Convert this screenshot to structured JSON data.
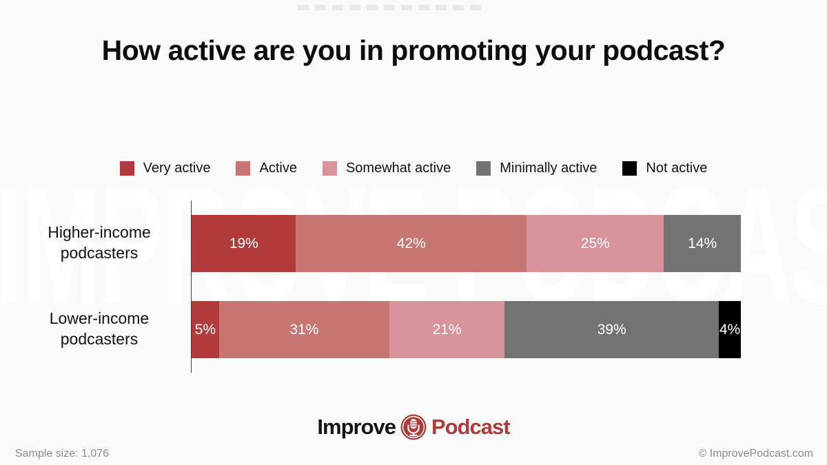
{
  "page": {
    "background_color": "#fafafa",
    "watermark_color": "#ffffff",
    "accent_red": "#b23c3c",
    "footer_text_color": "#8b8b8b",
    "top_dash_color": "#e9e9e9"
  },
  "title": "How active are you in promoting your podcast?",
  "watermark": "IMPROVE PODCAST",
  "legend": [
    {
      "label": "Very active",
      "color": "#b23c3c"
    },
    {
      "label": "Active",
      "color": "#c77672"
    },
    {
      "label": "Somewhat active",
      "color": "#d9939b"
    },
    {
      "label": "Minimally active",
      "color": "#737373"
    },
    {
      "label": "Not active",
      "color": "#000000"
    }
  ],
  "chart_data": {
    "type": "bar",
    "orientation": "horizontal-stacked",
    "title": "How active are you in promoting your podcast?",
    "categories": [
      "Higher-income podcasters",
      "Lower-income podcasters"
    ],
    "series": [
      {
        "name": "Very active",
        "color": "#b23c3c",
        "values": [
          19,
          5
        ]
      },
      {
        "name": "Active",
        "color": "#c77672",
        "values": [
          42,
          31
        ]
      },
      {
        "name": "Somewhat active",
        "color": "#d9939b",
        "values": [
          25,
          21
        ]
      },
      {
        "name": "Minimally active",
        "color": "#737373",
        "values": [
          14,
          39
        ]
      },
      {
        "name": "Not active",
        "color": "#000000",
        "values": [
          0,
          4
        ]
      }
    ],
    "value_format": "percent",
    "xlim": [
      0,
      100
    ],
    "grid": false,
    "legend_position": "top",
    "data_labels": "inside-white"
  },
  "footer": {
    "logo": {
      "improve": "Improve",
      "podcast": "Podcast",
      "icon": "microphone-icon"
    },
    "sample_size": "Sample size: 1,076",
    "copyright": "© ImprovePodcast.com"
  }
}
